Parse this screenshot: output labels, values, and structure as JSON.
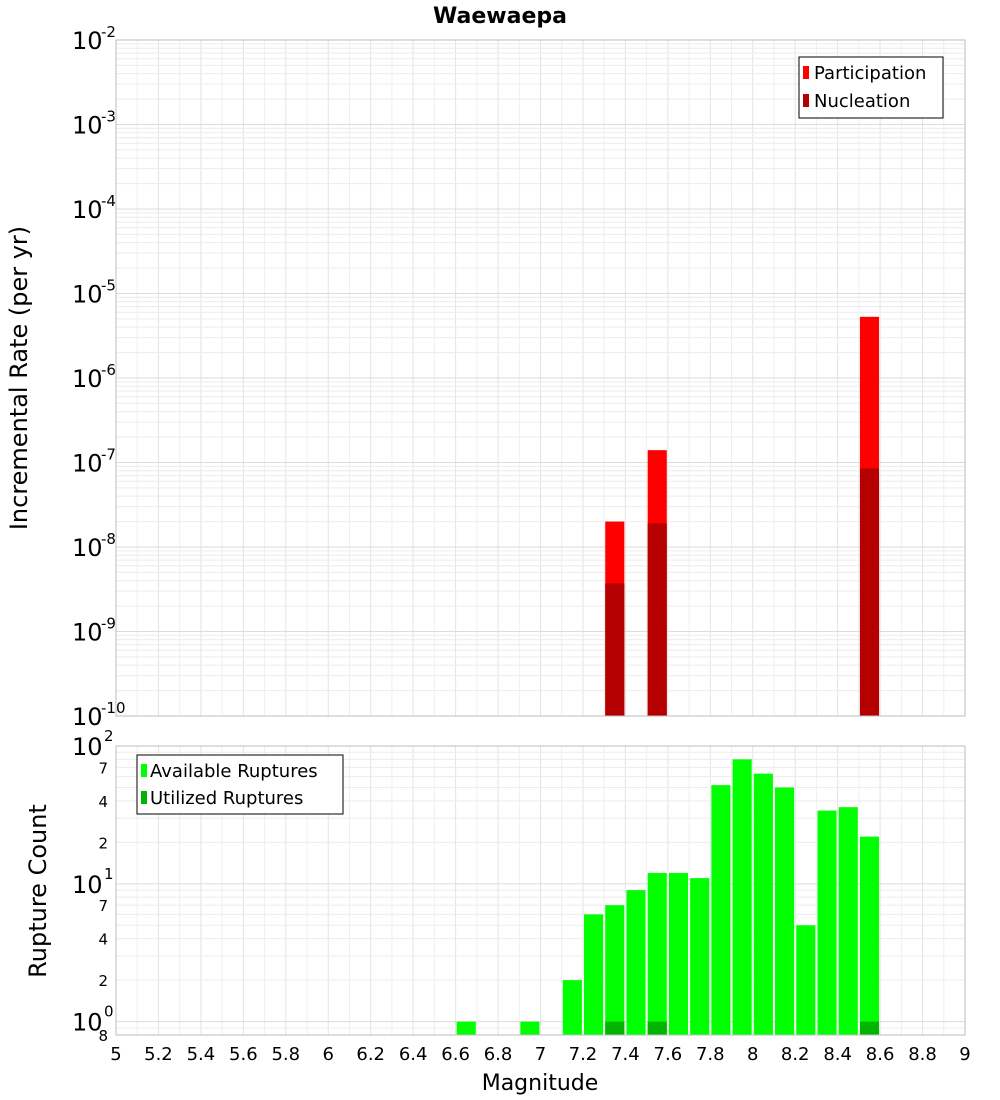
{
  "chart_data": [
    {
      "type": "bar",
      "title": "Waewaepa",
      "ylabel": "Incremental Rate (per yr)",
      "xlabel": "",
      "y_scale": "log",
      "xlim": [
        5,
        9
      ],
      "ylim": [
        1e-10,
        0.01
      ],
      "y_tick_exponents": [
        "-2",
        "-3",
        "-4",
        "-5",
        "-6",
        "-7",
        "-8",
        "-9",
        "-10"
      ],
      "grid": true,
      "legend_position": "top-right",
      "bar_width": 0.09,
      "series": [
        {
          "name": "Participation",
          "color": "#ff0000",
          "points": [
            {
              "x": 7.35,
              "y": 2e-08
            },
            {
              "x": 7.55,
              "y": 1.4e-07
            },
            {
              "x": 8.55,
              "y": 5.3e-06
            }
          ]
        },
        {
          "name": "Nucleation",
          "color": "#b40000",
          "points": [
            {
              "x": 7.35,
              "y": 3.7e-09
            },
            {
              "x": 7.55,
              "y": 1.9e-08
            },
            {
              "x": 8.55,
              "y": 8.5e-08
            }
          ]
        }
      ]
    },
    {
      "type": "bar",
      "title": "",
      "ylabel": "Rupture Count",
      "xlabel": "Magnitude",
      "y_scale": "log",
      "xlim": [
        5,
        9
      ],
      "ylim": [
        0.8,
        100
      ],
      "x_ticks": [
        "5",
        "5.2",
        "5.4",
        "5.6",
        "5.8",
        "6",
        "6.2",
        "6.4",
        "6.6",
        "6.8",
        "7",
        "7.2",
        "7.4",
        "7.6",
        "7.8",
        "8",
        "8.2",
        "8.4",
        "8.6",
        "8.8",
        "9"
      ],
      "y_decade_labels": [
        {
          "value": 100,
          "base": "10",
          "exp": "2"
        },
        {
          "value": 10,
          "base": "10",
          "exp": "1"
        },
        {
          "value": 1,
          "base": "10",
          "exp": "0"
        }
      ],
      "y_minor_labels": [
        {
          "value": 70,
          "label": "7"
        },
        {
          "value": 40,
          "label": "4"
        },
        {
          "value": 20,
          "label": "2"
        },
        {
          "value": 7,
          "label": "7"
        },
        {
          "value": 4,
          "label": "4"
        },
        {
          "value": 2,
          "label": "2"
        },
        {
          "value": 0.8,
          "label": "8"
        }
      ],
      "grid": true,
      "legend_position": "top-left",
      "bar_width": 0.09,
      "series": [
        {
          "name": "Available Ruptures",
          "color": "#00ff00",
          "points": [
            {
              "x": 6.65,
              "y": 1
            },
            {
              "x": 6.95,
              "y": 1
            },
            {
              "x": 7.15,
              "y": 2
            },
            {
              "x": 7.25,
              "y": 6
            },
            {
              "x": 7.35,
              "y": 7
            },
            {
              "x": 7.45,
              "y": 9
            },
            {
              "x": 7.55,
              "y": 12
            },
            {
              "x": 7.65,
              "y": 12
            },
            {
              "x": 7.75,
              "y": 11
            },
            {
              "x": 7.85,
              "y": 52
            },
            {
              "x": 7.95,
              "y": 80
            },
            {
              "x": 8.05,
              "y": 63
            },
            {
              "x": 8.15,
              "y": 50
            },
            {
              "x": 8.25,
              "y": 5
            },
            {
              "x": 8.35,
              "y": 34
            },
            {
              "x": 8.45,
              "y": 36
            },
            {
              "x": 8.55,
              "y": 22
            }
          ]
        },
        {
          "name": "Utilized Ruptures",
          "color": "#00b400",
          "points": [
            {
              "x": 7.35,
              "y": 1
            },
            {
              "x": 7.55,
              "y": 1
            },
            {
              "x": 8.55,
              "y": 1
            }
          ]
        }
      ]
    }
  ]
}
